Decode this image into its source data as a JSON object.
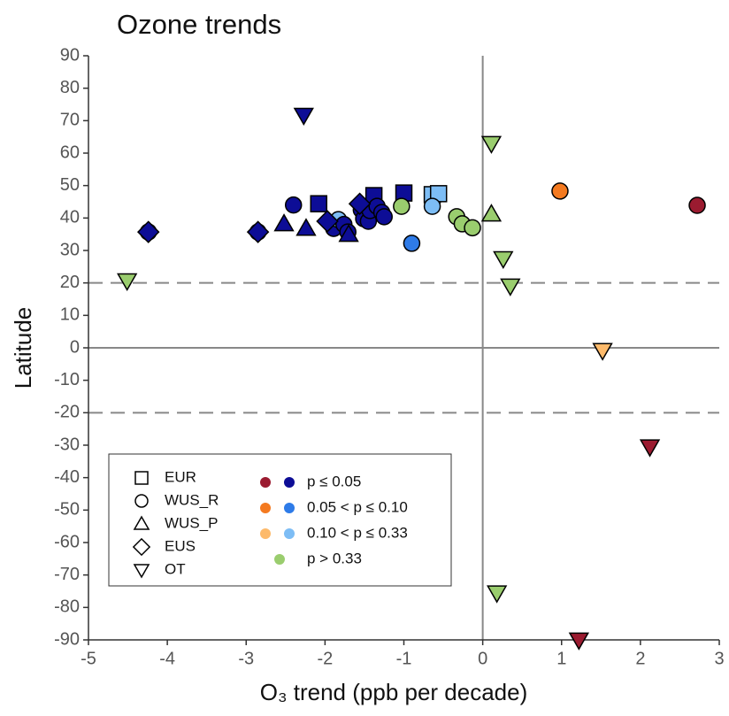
{
  "chart_data": {
    "type": "scatter",
    "title": "Ozone trends",
    "xlabel": "O₃ trend (ppb per decade)",
    "ylabel": "Latitude",
    "xlim": [
      -5,
      3
    ],
    "xticks": [
      -5,
      -4,
      -3,
      -2,
      -1,
      0,
      1,
      2,
      3
    ],
    "ylim": [
      -90,
      90
    ],
    "yticks": [
      -90,
      -80,
      -70,
      -60,
      -50,
      -40,
      -30,
      -20,
      -10,
      0,
      10,
      20,
      30,
      40,
      50,
      60,
      70,
      80,
      90
    ],
    "hlines": [
      {
        "value": 20,
        "style": "dashed"
      },
      {
        "value": -20,
        "style": "dashed"
      },
      {
        "value": 0,
        "style": "solid"
      }
    ],
    "vlines": [
      {
        "value": 0,
        "style": "solid"
      }
    ],
    "series": [
      {
        "name": "EUR",
        "marker": "square",
        "x": [
          -2.08,
          -1.38,
          -1.0,
          -0.64,
          -0.56
        ],
        "values": [
          44.4,
          46.9,
          47.7,
          47.2,
          47.5
        ],
        "colors": [
          "#0d0d96",
          "#0d0d96",
          "#0d0d96",
          "#7dbdf5",
          "#7dbdf5"
        ]
      },
      {
        "name": "WUS_R",
        "marker": "circle",
        "x": [
          -2.4,
          -2.85,
          -1.89,
          -1.83,
          -1.76,
          -1.71,
          -1.54,
          -1.51,
          -1.45,
          -1.43,
          -1.34,
          -1.28,
          -1.25,
          -1.03,
          -0.9,
          -0.64,
          -0.33,
          -0.26,
          -0.13,
          0.98,
          2.72,
          -4.24
        ],
        "values": [
          44,
          35.7,
          36.8,
          39.5,
          38,
          35.7,
          42.5,
          39.8,
          39,
          42.3,
          43.6,
          41.7,
          40.4,
          43.6,
          32.2,
          43.6,
          40.4,
          38.2,
          37,
          48.3,
          43.9,
          35.7
        ],
        "colors": [
          "#0d0d96",
          "#0d0d96",
          "#0d0d96",
          "#7dbdf5",
          "#0d0d96",
          "#0d0d96",
          "#0d0d96",
          "#0d0d96",
          "#0d0d96",
          "#0d0d96",
          "#0d0d96",
          "#0d0d96",
          "#0d0d96",
          "#9acd6e",
          "#2e7be8",
          "#7dbdf5",
          "#9acd6e",
          "#9acd6e",
          "#9acd6e",
          "#f47a20",
          "#9b1b30",
          "#0d0d96"
        ]
      },
      {
        "name": "WUS_P",
        "marker": "triangle-up",
        "x": [
          -2.52,
          -2.24,
          -1.7,
          0.11
        ],
        "values": [
          38.2,
          36.8,
          34.9,
          41.2
        ],
        "colors": [
          "#0d0d96",
          "#0d0d96",
          "#0d0d96",
          "#9acd6e"
        ]
      },
      {
        "name": "EUS",
        "marker": "diamond",
        "x": [
          -4.24,
          -2.85,
          -1.97,
          -1.56
        ],
        "values": [
          35.7,
          35.7,
          39,
          44.4
        ],
        "colors": [
          "#0d0d96",
          "#0d0d96",
          "#0d0d96",
          "#0d0d96"
        ]
      },
      {
        "name": "OT",
        "marker": "triangle-down",
        "x": [
          -4.51,
          -2.27,
          0.11,
          0.26,
          0.35,
          1.52,
          2.12,
          0.18,
          1.22
        ],
        "values": [
          20.7,
          71.7,
          63,
          27.5,
          19.1,
          -0.8,
          -30.5,
          -75.5,
          -90
        ],
        "colors": [
          "#9acd6e",
          "#0d0d96",
          "#9acd6e",
          "#9acd6e",
          "#9acd6e",
          "#fdba6b",
          "#9b1b30",
          "#9acd6e",
          "#9b1b30"
        ]
      }
    ],
    "color_legend": [
      {
        "label": "p ≤ 0.05",
        "colors": [
          "#9b1b30",
          "#0d0d96"
        ]
      },
      {
        "label": "0.05 < p ≤ 0.10",
        "colors": [
          "#f47a20",
          "#2e7be8"
        ]
      },
      {
        "label": "0.10 < p ≤ 0.33",
        "colors": [
          "#fdba6b",
          "#7dbdf5"
        ]
      },
      {
        "label": "p > 0.33",
        "colors": [
          "#9acd6e"
        ]
      }
    ]
  }
}
